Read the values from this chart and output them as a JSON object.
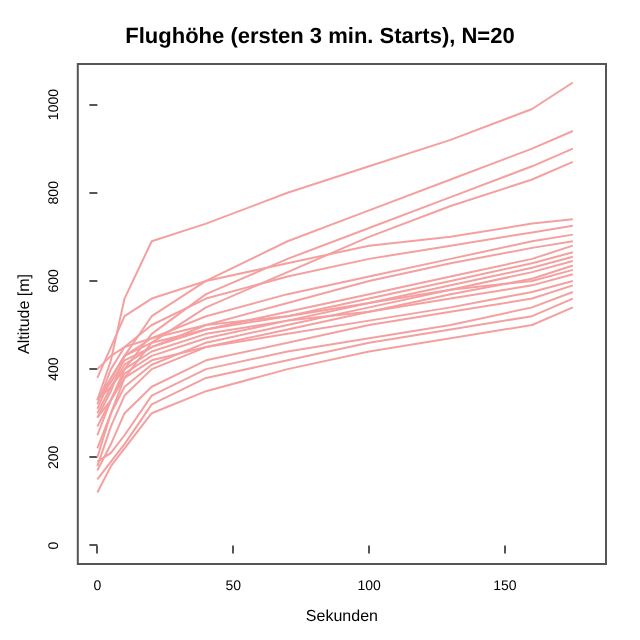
{
  "chart_data": {
    "type": "line",
    "title": "Flughöhe (ersten 3 min. Starts), N=20",
    "xlabel": "Sekunden",
    "ylabel": "Altitude [m]",
    "xlim": [
      -7.2,
      187.2
    ],
    "ylim": [
      -42,
      1092
    ],
    "xticks": [
      0,
      50,
      100,
      150
    ],
    "yticks": [
      0,
      200,
      400,
      600,
      800,
      1000
    ],
    "grid": false,
    "marker": "none",
    "line_style": "solid",
    "x": [
      0,
      5,
      10,
      20,
      40,
      70,
      100,
      130,
      160,
      175
    ],
    "series": [
      {
        "color": "#f4a0a0",
        "values": [
          330,
          420,
          560,
          690,
          730,
          800,
          860,
          920,
          990,
          1050
        ]
      },
      {
        "color": "#f4a0a0",
        "values": [
          290,
          350,
          430,
          520,
          600,
          690,
          760,
          830,
          900,
          940
        ]
      },
      {
        "color": "#f4a0a0",
        "values": [
          250,
          330,
          400,
          480,
          570,
          650,
          720,
          790,
          860,
          900
        ]
      },
      {
        "color": "#f4a0a0",
        "values": [
          200,
          300,
          380,
          460,
          540,
          620,
          700,
          770,
          830,
          870
        ]
      },
      {
        "color": "#f4a0a0",
        "values": [
          380,
          450,
          520,
          560,
          600,
          640,
          680,
          700,
          730,
          740
        ]
      },
      {
        "color": "#f4a0a0",
        "values": [
          320,
          400,
          450,
          500,
          560,
          610,
          650,
          680,
          710,
          725
        ]
      },
      {
        "color": "#f4a0a0",
        "values": [
          330,
          380,
          430,
          470,
          520,
          570,
          610,
          650,
          690,
          705
        ]
      },
      {
        "color": "#f4a0a0",
        "values": [
          300,
          360,
          410,
          450,
          500,
          550,
          600,
          640,
          675,
          690
        ]
      },
      {
        "color": "#f4a0a0",
        "values": [
          330,
          370,
          420,
          450,
          490,
          530,
          570,
          610,
          650,
          680
        ]
      },
      {
        "color": "#f4a0a0",
        "values": [
          310,
          380,
          430,
          460,
          490,
          520,
          560,
          600,
          640,
          665
        ]
      },
      {
        "color": "#f4a0a0",
        "values": [
          270,
          330,
          390,
          430,
          470,
          510,
          550,
          590,
          630,
          655
        ]
      },
      {
        "color": "#f4a0a0",
        "values": [
          220,
          300,
          360,
          410,
          460,
          500,
          540,
          580,
          620,
          645
        ]
      },
      {
        "color": "#f4a0a0",
        "values": [
          180,
          270,
          340,
          400,
          450,
          490,
          530,
          570,
          605,
          635
        ]
      },
      {
        "color": "#f4a0a0",
        "values": [
          400,
          430,
          450,
          470,
          500,
          520,
          550,
          580,
          600,
          625
        ]
      },
      {
        "color": "#f4a0a0",
        "values": [
          330,
          360,
          400,
          440,
          480,
          510,
          530,
          560,
          590,
          615
        ]
      },
      {
        "color": "#f4a0a0",
        "values": [
          290,
          330,
          380,
          420,
          450,
          480,
          510,
          540,
          575,
          600
        ]
      },
      {
        "color": "#f4a0a0",
        "values": [
          170,
          230,
          300,
          360,
          420,
          460,
          500,
          530,
          560,
          590
        ]
      },
      {
        "color": "#f4a0a0",
        "values": [
          190,
          210,
          250,
          340,
          400,
          440,
          470,
          500,
          540,
          575
        ]
      },
      {
        "color": "#f4a0a0",
        "values": [
          150,
          190,
          230,
          320,
          380,
          420,
          460,
          490,
          520,
          560
        ]
      },
      {
        "color": "#f4a0a0",
        "values": [
          120,
          180,
          220,
          300,
          350,
          400,
          440,
          470,
          500,
          540
        ]
      }
    ]
  }
}
